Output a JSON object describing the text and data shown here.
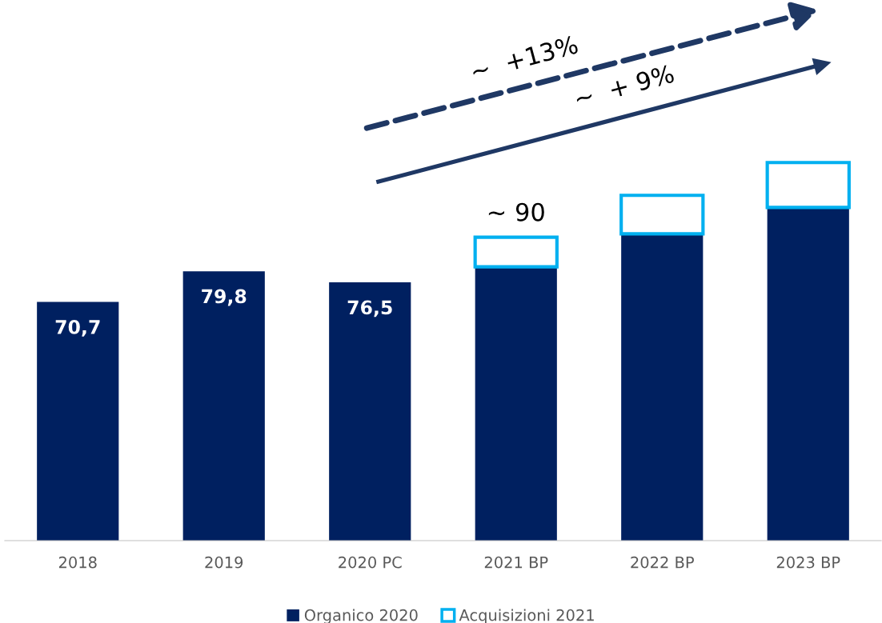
{
  "chart_data": {
    "type": "bar",
    "stacked": true,
    "categories": [
      "2018",
      "2019",
      "2020 PC",
      "2021 BP",
      "2022 BP",
      "2023 BP"
    ],
    "series": [
      {
        "name": "Organico 2020",
        "color": "#002060",
        "values": [
          70.7,
          79.8,
          76.5,
          81.1,
          90.9,
          98.7
        ],
        "value_labels": [
          "70,7",
          "79,8",
          "76,5",
          null,
          null,
          null
        ]
      },
      {
        "name": "Acquisizioni 2021",
        "color": "#00b0f0",
        "values": [
          null,
          null,
          null,
          8.8,
          11.4,
          13.3
        ]
      }
    ],
    "totals": [
      null,
      null,
      null,
      "~ 90",
      null,
      null
    ],
    "annotations": [
      "~  +13%",
      "~  + 9%"
    ],
    "legend": "bottom",
    "grid": false
  }
}
